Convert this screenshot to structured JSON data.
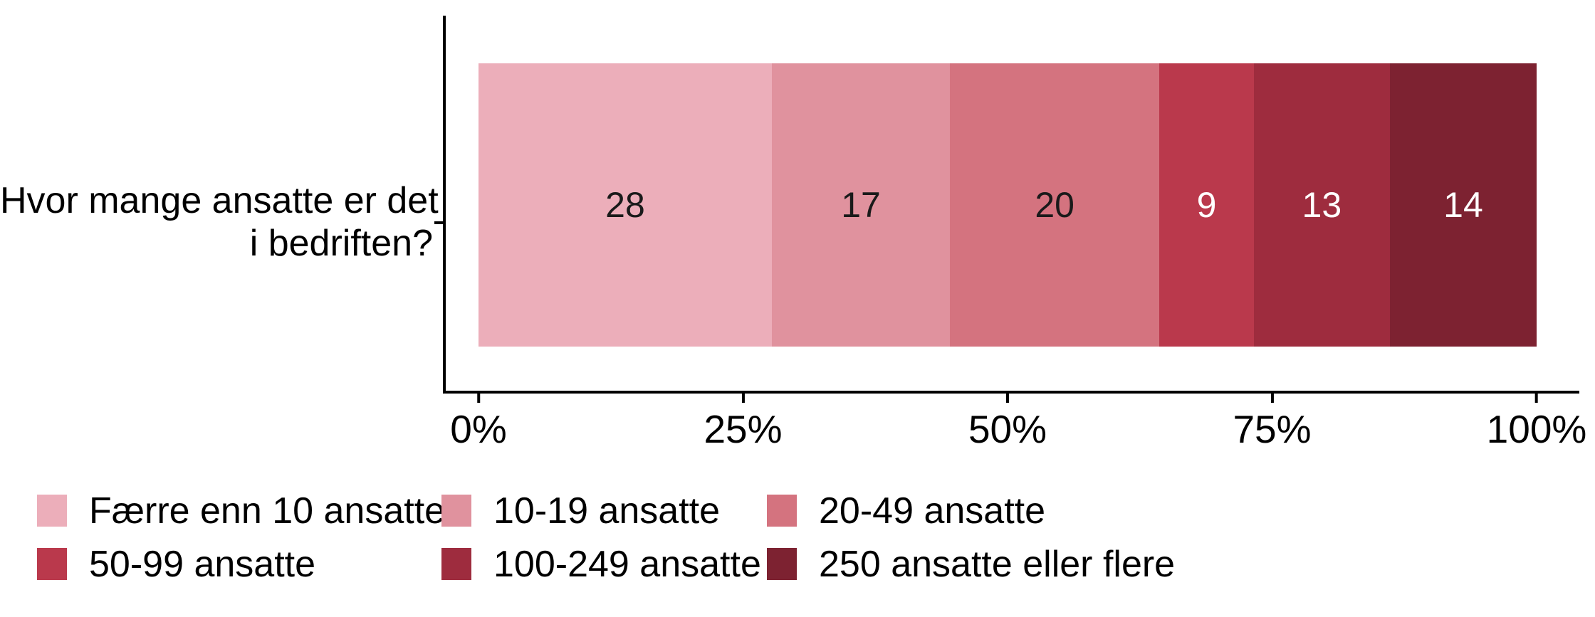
{
  "chart_data": {
    "type": "bar",
    "orientation": "horizontal",
    "stacked": true,
    "title": "",
    "xlabel": "",
    "ylabel": "",
    "categories": [
      "Hvor mange ansatte er det i bedriften?"
    ],
    "category_label_lines": {
      "line1": "Hvor mange ansatte er det",
      "line2": "i bedriften?"
    },
    "series": [
      {
        "name": "Færre enn 10 ansatte",
        "value": 28,
        "color": "#ECAEBA",
        "label_color": "#1a1a1a"
      },
      {
        "name": "10-19 ansatte",
        "value": 17,
        "color": "#E0929E",
        "label_color": "#1a1a1a"
      },
      {
        "name": "20-49 ansatte",
        "value": 20,
        "color": "#D4737F",
        "label_color": "#1a1a1a"
      },
      {
        "name": "50-99 ansatte",
        "value": 9,
        "color": "#BA394C",
        "label_color": "#ffffff"
      },
      {
        "name": "100-249 ansatte",
        "value": 13,
        "color": "#9E2C3E",
        "label_color": "#ffffff"
      },
      {
        "name": "250 ansatte eller flere",
        "value": 14,
        "color": "#7D2231",
        "label_color": "#ffffff"
      }
    ],
    "x_ticks": [
      "0%",
      "25%",
      "50%",
      "75%",
      "100%"
    ],
    "xlim": [
      0,
      100
    ],
    "grid": false,
    "axis_color": "#000000",
    "legend_position": "bottom"
  }
}
